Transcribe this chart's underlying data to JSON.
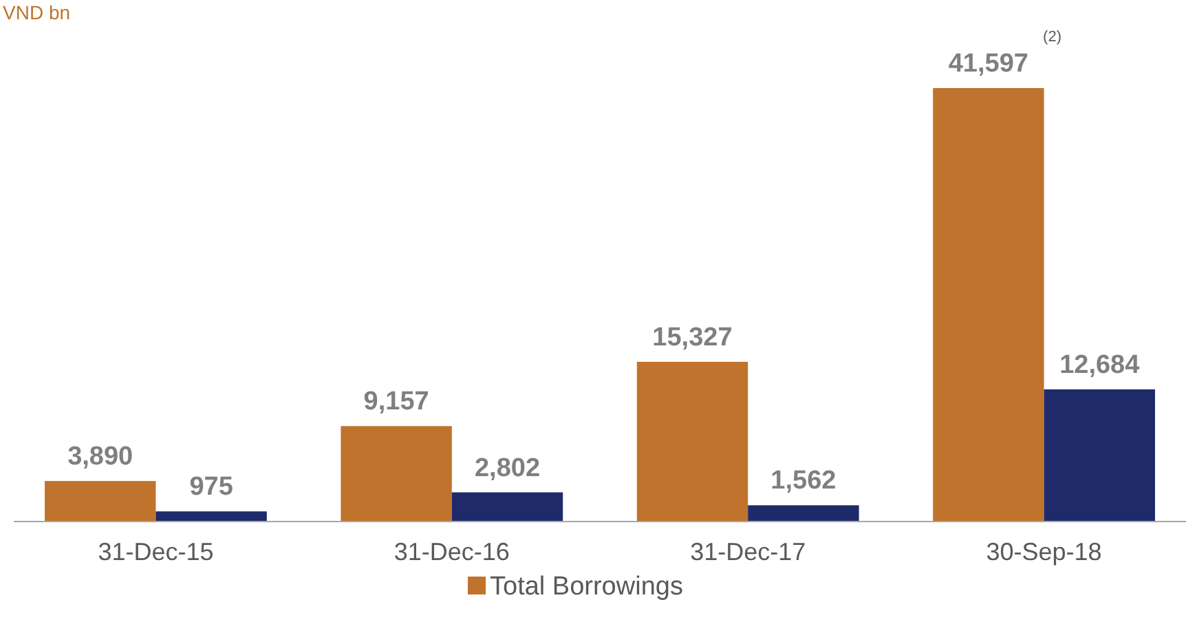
{
  "chart_data": {
    "type": "bar",
    "ylabel": "VND bn",
    "categories": [
      "31-Dec-15",
      "31-Dec-16",
      "31-Dec-17",
      "30-Sep-18"
    ],
    "series": [
      {
        "name": "Total Borrowings",
        "color": "#c0732c",
        "values": [
          3890,
          9157,
          15327,
          41597
        ],
        "value_labels": [
          "3,890",
          "9,157",
          "15,327",
          "41,597"
        ]
      },
      {
        "color": "#1f2a6b",
        "values": [
          975,
          2802,
          1562,
          12684
        ],
        "value_labels": [
          "975",
          "2,802",
          "1,562",
          "12,684"
        ]
      }
    ],
    "legend": "bottom",
    "annotations": [
      "(2)"
    ]
  }
}
